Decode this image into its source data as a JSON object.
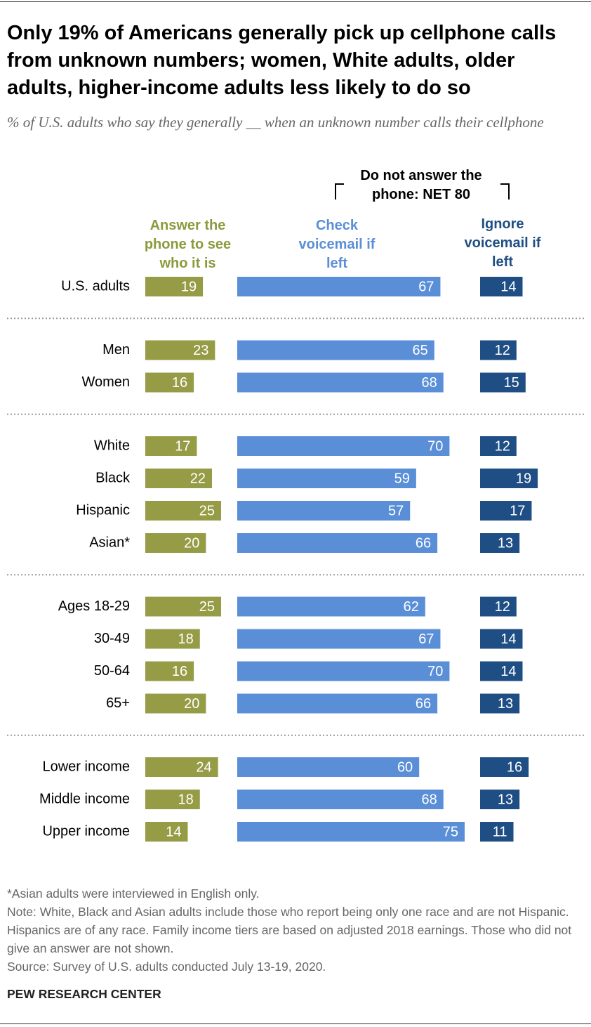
{
  "chart_data": {
    "type": "bar",
    "orientation": "horizontal",
    "title": "Only 19% of Americans generally pick up cellphone calls from unknown numbers; women, White adults, older adults, higher-income adults less likely to do so",
    "subtitle": "% of U.S. adults who say they generally __ when an unknown number calls their cellphone",
    "group_label": "Do not answer the phone: NET 80",
    "categories": [
      "U.S. adults",
      "Men",
      "Women",
      "White",
      "Black",
      "Hispanic",
      "Asian*",
      "Ages 18-29",
      "30-49",
      "50-64",
      "65+",
      "Lower income",
      "Middle income",
      "Upper income"
    ],
    "series": [
      {
        "name": "Answer the phone to see who it is",
        "color": "#969c45",
        "label_color": "#8b9a3c",
        "values": [
          19,
          23,
          16,
          17,
          22,
          25,
          20,
          25,
          18,
          16,
          20,
          24,
          18,
          14
        ]
      },
      {
        "name": "Check voicemail if left",
        "color": "#5a8fd8",
        "label_color": "#5a8ed6",
        "values": [
          67,
          65,
          68,
          70,
          59,
          57,
          66,
          62,
          67,
          70,
          66,
          60,
          68,
          75
        ]
      },
      {
        "name": "Ignore voicemail if left",
        "color": "#1f4e85",
        "label_color": "#1f4e82",
        "values": [
          14,
          12,
          15,
          12,
          19,
          17,
          13,
          12,
          14,
          14,
          13,
          16,
          13,
          11
        ]
      }
    ],
    "footnote": "*Asian adults were interviewed in English only.",
    "note": "Note: White, Black and Asian adults include those who report being only one race and are not Hispanic. Hispanics are of any race. Family income tiers are based on adjusted 2018 earnings. Those who did not give an answer are not shown.",
    "source": "Source: Survey of U.S. adults conducted July 13-19, 2020.",
    "credit": "PEW RESEARCH CENTER"
  }
}
